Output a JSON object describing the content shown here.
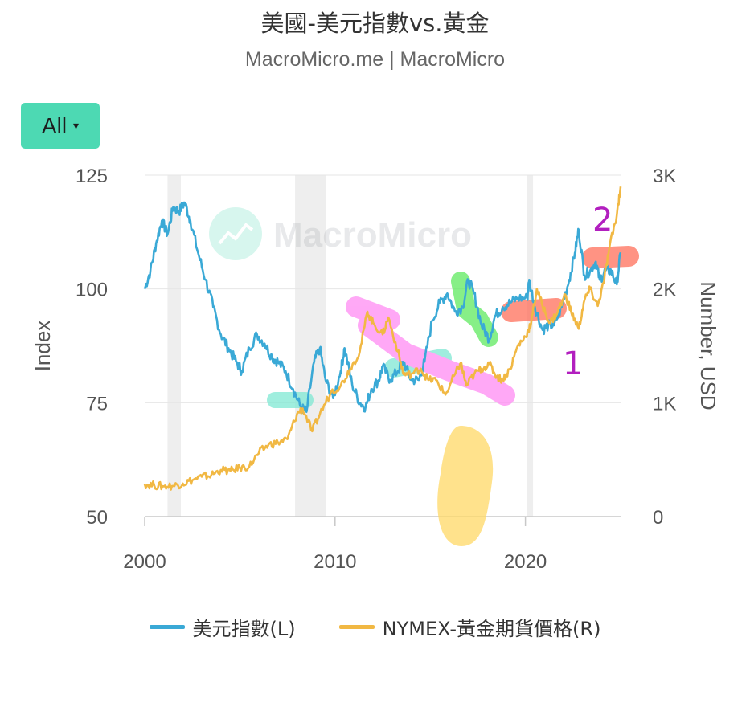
{
  "header": {
    "title": "美國-美元指數vs.黃金",
    "subtitle": "MacroMicro.me | MacroMicro"
  },
  "range_button": {
    "label": "All",
    "caret": "▾"
  },
  "watermark": {
    "text": "MacroMicro",
    "icon": "chart-logo-icon"
  },
  "annotations": {
    "label_1": "1",
    "label_2": "2"
  },
  "colors": {
    "usd_index": "#3aa9d6",
    "gold": "#f1b843",
    "recession_band": "#eeeeee",
    "grid": "#e6e6e6",
    "highlight_teal": "#7fe8d3",
    "highlight_pink": "#ff8cf3",
    "highlight_green": "#5fea5f",
    "highlight_red": "#ff6f5a",
    "highlight_yellow": "#ffd866",
    "annotation_text": "#b21fbf"
  },
  "chart_data": {
    "type": "line",
    "title": "美國-美元指數vs.黃金",
    "subtitle": "MacroMicro.me | MacroMicro",
    "x_axis": {
      "ticks": [
        "2000",
        "2010",
        "2020"
      ],
      "range": [
        2000,
        2025
      ]
    },
    "y_axis_left": {
      "label": "Index",
      "ticks": [
        "50",
        "75",
        "100",
        "125"
      ],
      "range": [
        50,
        125
      ]
    },
    "y_axis_right": {
      "label": "Number, USD",
      "ticks": [
        "0",
        "1K",
        "2K",
        "3K"
      ],
      "range": [
        0,
        3000
      ]
    },
    "recession_bands": [
      [
        2001.2,
        2001.9
      ],
      [
        2007.9,
        2009.5
      ],
      [
        2020.1,
        2020.4
      ]
    ],
    "legend_position": "bottom",
    "grid": true,
    "series": [
      {
        "name": "美元指數(L)",
        "axis": "left",
        "points": [
          [
            2000.0,
            100
          ],
          [
            2000.3,
            104
          ],
          [
            2000.6,
            110
          ],
          [
            2000.9,
            115
          ],
          [
            2001.2,
            112
          ],
          [
            2001.5,
            118
          ],
          [
            2001.8,
            117
          ],
          [
            2002.1,
            119
          ],
          [
            2002.4,
            115
          ],
          [
            2002.8,
            108
          ],
          [
            2003.2,
            102
          ],
          [
            2003.6,
            96
          ],
          [
            2004.0,
            90
          ],
          [
            2004.4,
            87
          ],
          [
            2004.8,
            84
          ],
          [
            2005.1,
            82
          ],
          [
            2005.5,
            87
          ],
          [
            2005.9,
            90
          ],
          [
            2006.3,
            88
          ],
          [
            2006.7,
            85
          ],
          [
            2007.0,
            84
          ],
          [
            2007.4,
            82
          ],
          [
            2007.8,
            78
          ],
          [
            2008.2,
            74
          ],
          [
            2008.5,
            73
          ],
          [
            2008.9,
            84
          ],
          [
            2009.2,
            87
          ],
          [
            2009.5,
            80
          ],
          [
            2009.9,
            76
          ],
          [
            2010.3,
            82
          ],
          [
            2010.5,
            87
          ],
          [
            2010.9,
            79
          ],
          [
            2011.3,
            75
          ],
          [
            2011.6,
            74
          ],
          [
            2011.9,
            78
          ],
          [
            2012.3,
            80
          ],
          [
            2012.5,
            83
          ],
          [
            2012.9,
            80
          ],
          [
            2013.3,
            82
          ],
          [
            2013.6,
            84
          ],
          [
            2014.0,
            80
          ],
          [
            2014.4,
            80
          ],
          [
            2014.7,
            84
          ],
          [
            2015.1,
            93
          ],
          [
            2015.5,
            97
          ],
          [
            2015.9,
            99
          ],
          [
            2016.3,
            95
          ],
          [
            2016.7,
            96
          ],
          [
            2017.0,
            102
          ],
          [
            2017.3,
            99
          ],
          [
            2017.7,
            92
          ],
          [
            2018.1,
            89
          ],
          [
            2018.4,
            94
          ],
          [
            2018.8,
            96
          ],
          [
            2019.2,
            97
          ],
          [
            2019.6,
            98
          ],
          [
            2020.1,
            98
          ],
          [
            2020.2,
            102
          ],
          [
            2020.5,
            96
          ],
          [
            2020.9,
            91
          ],
          [
            2021.2,
            92
          ],
          [
            2021.5,
            92
          ],
          [
            2021.9,
            96
          ],
          [
            2022.3,
            102
          ],
          [
            2022.6,
            108
          ],
          [
            2022.8,
            113
          ],
          [
            2023.1,
            103
          ],
          [
            2023.4,
            104
          ],
          [
            2023.7,
            106
          ],
          [
            2023.9,
            102
          ],
          [
            2024.2,
            104
          ],
          [
            2024.5,
            104
          ],
          [
            2024.8,
            101
          ],
          [
            2025.0,
            108
          ]
        ]
      },
      {
        "name": "NYMEX-黃金期貨價格(R)",
        "axis": "right",
        "points": [
          [
            2000.0,
            285
          ],
          [
            2000.5,
            275
          ],
          [
            2001.0,
            265
          ],
          [
            2001.5,
            270
          ],
          [
            2002.0,
            290
          ],
          [
            2002.5,
            320
          ],
          [
            2003.0,
            350
          ],
          [
            2003.5,
            365
          ],
          [
            2004.0,
            410
          ],
          [
            2004.5,
            400
          ],
          [
            2005.0,
            430
          ],
          [
            2005.5,
            440
          ],
          [
            2006.0,
            560
          ],
          [
            2006.5,
            630
          ],
          [
            2007.0,
            650
          ],
          [
            2007.5,
            680
          ],
          [
            2008.0,
            900
          ],
          [
            2008.3,
            950
          ],
          [
            2008.8,
            750
          ],
          [
            2009.2,
            900
          ],
          [
            2009.8,
            1100
          ],
          [
            2010.3,
            1150
          ],
          [
            2010.8,
            1300
          ],
          [
            2011.3,
            1450
          ],
          [
            2011.7,
            1800
          ],
          [
            2012.0,
            1700
          ],
          [
            2012.5,
            1600
          ],
          [
            2012.8,
            1750
          ],
          [
            2013.3,
            1450
          ],
          [
            2013.6,
            1250
          ],
          [
            2014.0,
            1250
          ],
          [
            2014.5,
            1300
          ],
          [
            2014.9,
            1200
          ],
          [
            2015.3,
            1200
          ],
          [
            2015.8,
            1070
          ],
          [
            2016.3,
            1250
          ],
          [
            2016.6,
            1350
          ],
          [
            2016.9,
            1150
          ],
          [
            2017.3,
            1250
          ],
          [
            2017.7,
            1300
          ],
          [
            2018.1,
            1340
          ],
          [
            2018.5,
            1230
          ],
          [
            2018.8,
            1200
          ],
          [
            2019.2,
            1300
          ],
          [
            2019.6,
            1500
          ],
          [
            2020.0,
            1580
          ],
          [
            2020.3,
            1700
          ],
          [
            2020.6,
            2000
          ],
          [
            2020.9,
            1850
          ],
          [
            2021.3,
            1700
          ],
          [
            2021.7,
            1800
          ],
          [
            2022.1,
            1950
          ],
          [
            2022.4,
            1800
          ],
          [
            2022.8,
            1650
          ],
          [
            2023.1,
            1900
          ],
          [
            2023.4,
            2000
          ],
          [
            2023.8,
            1850
          ],
          [
            2024.1,
            2050
          ],
          [
            2024.4,
            2350
          ],
          [
            2024.8,
            2650
          ],
          [
            2025.0,
            2900
          ]
        ]
      }
    ]
  },
  "legend": [
    {
      "label": "美元指數(L)",
      "color": "#3aa9d6"
    },
    {
      "label": "NYMEX-黃金期貨價格(R)",
      "color": "#f1b843"
    }
  ]
}
